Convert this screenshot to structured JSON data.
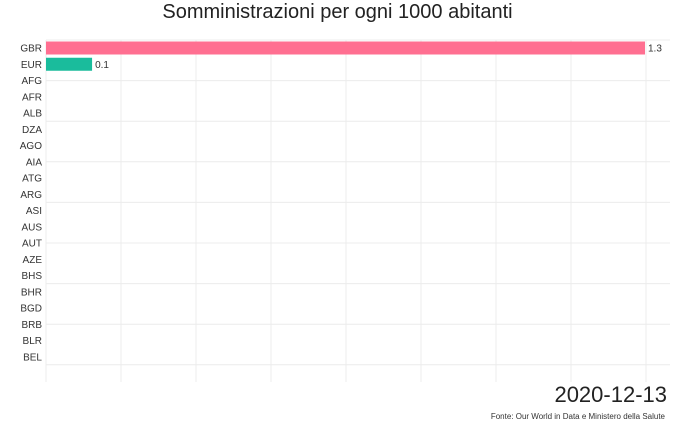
{
  "chart_data": {
    "type": "bar",
    "orientation": "horizontal",
    "title": "Somministrazioni per ogni 1000 abitanti",
    "categories": [
      "GBR",
      "EUR",
      "AFG",
      "AFR",
      "ALB",
      "DZA",
      "AGO",
      "AIA",
      "ATG",
      "ARG",
      "ASI",
      "AUS",
      "AUT",
      "AZE",
      "BHS",
      "BHR",
      "BGD",
      "BRB",
      "BLR",
      "BEL"
    ],
    "values": [
      1.3,
      0.1,
      0,
      0,
      0,
      0,
      0,
      0,
      0,
      0,
      0,
      0,
      0,
      0,
      0,
      0,
      0,
      0,
      0,
      0
    ],
    "labels": [
      "1.3",
      "0.1"
    ],
    "colors": [
      "#ff6f91",
      "#1abc9c"
    ],
    "xlim": [
      0,
      1.3
    ],
    "grid": true,
    "date": "2020-12-13",
    "source": "Fonte: Our World in Data e Ministero della Salute"
  }
}
